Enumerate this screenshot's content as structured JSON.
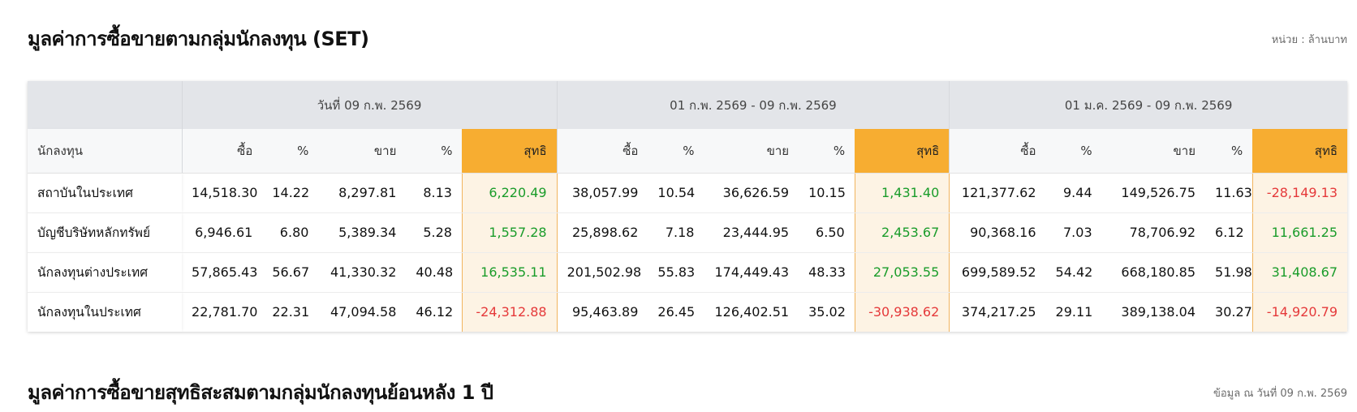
{
  "page": {
    "title": "มูลค่าการซื้อขายตามกลุ่มนักลงทุน (SET)",
    "unit": "หน่วย : ล้านบาท",
    "section2_title": "มูลค่าการซื้อขายสุทธิสะสมตามกลุ่มนักลงทุนย้อนหลัง 1 ปี",
    "section2_asof": "ข้อมูล ณ วันที่ 09 ก.พ. 2569"
  },
  "table": {
    "periods": [
      "วันที่ 09 ก.พ. 2569",
      "01 ก.พ. 2569 - 09 ก.พ. 2569",
      "01 ม.ค. 2569 - 09 ก.พ. 2569"
    ],
    "headers": {
      "investor": "นักลงทุน",
      "buy": "ซื้อ",
      "pct": "%",
      "sell": "ขาย",
      "net": "สุทธิ"
    },
    "rows": [
      {
        "investor": "สถาบันในประเทศ",
        "p1": {
          "buy": "14,518.30",
          "buy_pct": "14.22",
          "sell": "8,297.81",
          "sell_pct": "8.13",
          "net": "6,220.49"
        },
        "p2": {
          "buy": "38,057.99",
          "buy_pct": "10.54",
          "sell": "36,626.59",
          "sell_pct": "10.15",
          "net": "1,431.40"
        },
        "p3": {
          "buy": "121,377.62",
          "buy_pct": "9.44",
          "sell": "149,526.75",
          "sell_pct": "11.63",
          "net": "-28,149.13"
        }
      },
      {
        "investor": "บัญชีบริษัทหลักทรัพย์",
        "p1": {
          "buy": "6,946.61",
          "buy_pct": "6.80",
          "sell": "5,389.34",
          "sell_pct": "5.28",
          "net": "1,557.28"
        },
        "p2": {
          "buy": "25,898.62",
          "buy_pct": "7.18",
          "sell": "23,444.95",
          "sell_pct": "6.50",
          "net": "2,453.67"
        },
        "p3": {
          "buy": "90,368.16",
          "buy_pct": "7.03",
          "sell": "78,706.92",
          "sell_pct": "6.12",
          "net": "11,661.25"
        }
      },
      {
        "investor": "นักลงทุนต่างประเทศ",
        "p1": {
          "buy": "57,865.43",
          "buy_pct": "56.67",
          "sell": "41,330.32",
          "sell_pct": "40.48",
          "net": "16,535.11"
        },
        "p2": {
          "buy": "201,502.98",
          "buy_pct": "55.83",
          "sell": "174,449.43",
          "sell_pct": "48.33",
          "net": "27,053.55"
        },
        "p3": {
          "buy": "699,589.52",
          "buy_pct": "54.42",
          "sell": "668,180.85",
          "sell_pct": "51.98",
          "net": "31,408.67"
        }
      },
      {
        "investor": "นักลงทุนในประเทศ",
        "p1": {
          "buy": "22,781.70",
          "buy_pct": "22.31",
          "sell": "47,094.58",
          "sell_pct": "46.12",
          "net": "-24,312.88"
        },
        "p2": {
          "buy": "95,463.89",
          "buy_pct": "26.45",
          "sell": "126,402.51",
          "sell_pct": "35.02",
          "net": "-30,938.62"
        },
        "p3": {
          "buy": "374,217.25",
          "buy_pct": "29.11",
          "sell": "389,138.04",
          "sell_pct": "30.27",
          "net": "-14,920.79"
        }
      }
    ]
  },
  "colors": {
    "net_header": "#f7ad31",
    "net_cell_bg": "#fdf3e4",
    "positive": "#1a9c2a",
    "negative": "#e5393a",
    "group_header_bg": "#e3e5e9"
  }
}
